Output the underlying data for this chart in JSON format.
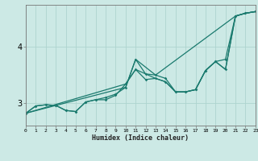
{
  "xlabel": "Humidex (Indice chaleur)",
  "bg_color": "#cce9e5",
  "line_color": "#1a7a6e",
  "grid_color": "#aed4cf",
  "x_min": 0,
  "x_max": 23,
  "y_min": 2.6,
  "y_max": 4.75,
  "yticks": [
    3,
    4
  ],
  "lines": [
    {
      "x": [
        0,
        1,
        2,
        3,
        4,
        5,
        6,
        7,
        8,
        9,
        10,
        11,
        12,
        13,
        14,
        15,
        16,
        17,
        18,
        19,
        20,
        21,
        22,
        23
      ],
      "y": [
        2.82,
        2.95,
        2.97,
        2.96,
        2.87,
        2.85,
        3.02,
        3.06,
        3.1,
        3.16,
        3.28,
        3.78,
        3.52,
        3.5,
        3.44,
        3.2,
        3.2,
        3.24,
        3.58,
        3.74,
        3.78,
        4.55,
        4.6,
        4.63
      ],
      "marker": true
    },
    {
      "x": [
        0,
        1,
        2,
        3,
        4,
        5,
        6,
        7,
        8,
        9,
        10,
        11,
        12,
        13,
        14,
        15,
        16,
        17,
        18,
        19,
        20,
        21,
        22,
        23
      ],
      "y": [
        2.82,
        2.95,
        2.97,
        2.96,
        2.87,
        2.85,
        3.02,
        3.06,
        3.06,
        3.14,
        3.34,
        3.6,
        3.42,
        3.44,
        3.38,
        3.2,
        3.2,
        3.24,
        3.58,
        3.74,
        3.6,
        4.55,
        4.6,
        4.63
      ],
      "marker": true
    },
    {
      "x": [
        0,
        10,
        11,
        13,
        21,
        22,
        23
      ],
      "y": [
        2.82,
        3.28,
        3.78,
        3.5,
        4.55,
        4.6,
        4.63
      ],
      "marker": false
    },
    {
      "x": [
        0,
        10,
        11,
        13,
        14,
        15,
        16,
        17,
        18,
        19,
        20,
        21,
        22,
        23
      ],
      "y": [
        2.82,
        3.34,
        3.6,
        3.44,
        3.38,
        3.2,
        3.2,
        3.24,
        3.58,
        3.74,
        3.6,
        4.55,
        4.6,
        4.63
      ],
      "marker": false
    }
  ]
}
